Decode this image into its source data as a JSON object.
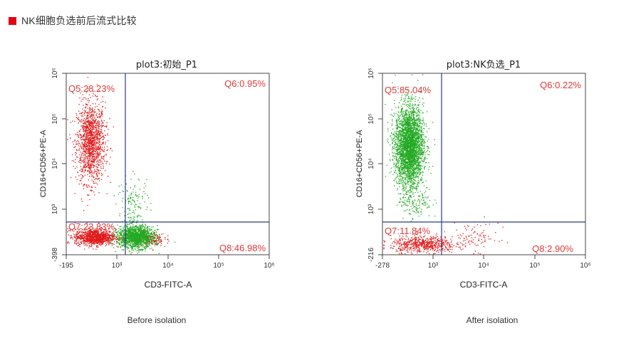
{
  "header": {
    "title": "NK细胞负选前后流式比较",
    "accent": "#e60012"
  },
  "captions": {
    "left": "Before isolation",
    "right": "After isolation"
  },
  "chart_data": [
    {
      "type": "scatter",
      "title": "plot3:初始_P1",
      "xlabel": "CD3-FITC-A",
      "ylabel": "CD16+CD56+PE-A",
      "x_ticks": [
        "-195",
        "10³",
        "10⁴",
        "10⁵",
        "10⁶"
      ],
      "y_ticks": [
        "-398",
        "10³",
        "10⁴",
        "10⁵",
        "10⁶"
      ],
      "quadrants": [
        {
          "label": "Q5:28.23%",
          "color": "#e03a3a"
        },
        {
          "label": "Q6:0.95%",
          "color": "#e03a3a"
        },
        {
          "label": "Q7:23.83%",
          "color": "#e03a3a"
        },
        {
          "label": "Q8:46.98%",
          "color": "#e03a3a"
        }
      ],
      "gate_color": "#2b3a8c",
      "populations": [
        {
          "color": "#e01919",
          "count": 1400,
          "cx": 0.12,
          "cy": 0.62,
          "sx": 0.035,
          "sy": 0.11
        },
        {
          "color": "#e01919",
          "count": 1100,
          "cx": 0.14,
          "cy": 0.1,
          "sx": 0.05,
          "sy": 0.022
        },
        {
          "color": "#e01919",
          "count": 200,
          "cx": 0.4,
          "cy": 0.09,
          "sx": 0.04,
          "sy": 0.02
        },
        {
          "color": "#22aa22",
          "count": 1500,
          "cx": 0.34,
          "cy": 0.1,
          "sx": 0.045,
          "sy": 0.03
        },
        {
          "color": "#22aa22",
          "count": 160,
          "cx": 0.33,
          "cy": 0.26,
          "sx": 0.04,
          "sy": 0.09
        }
      ]
    },
    {
      "type": "scatter",
      "title": "plot3:NK负选_P1",
      "xlabel": "CD3-FITC-A",
      "ylabel": "CD16+CD56+PE-A",
      "x_ticks": [
        "-278",
        "10³",
        "10⁴",
        "10⁵",
        "10⁶"
      ],
      "y_ticks": [
        "-216",
        "10³",
        "10⁴",
        "10⁵",
        "10⁶"
      ],
      "quadrants": [
        {
          "label": "Q5:85.04%",
          "color": "#e03a3a"
        },
        {
          "label": "Q6:0.22%",
          "color": "#e03a3a"
        },
        {
          "label": "Q7:11.84%",
          "color": "#e03a3a"
        },
        {
          "label": "Q8:2.90%",
          "color": "#e03a3a"
        }
      ],
      "gate_color": "#2b3a8c",
      "populations": [
        {
          "color": "#22aa22",
          "count": 3200,
          "cx": 0.13,
          "cy": 0.6,
          "sx": 0.035,
          "sy": 0.11
        },
        {
          "color": "#22aa22",
          "count": 150,
          "cx": 0.16,
          "cy": 0.3,
          "sx": 0.04,
          "sy": 0.05
        },
        {
          "color": "#e01919",
          "count": 600,
          "cx": 0.2,
          "cy": 0.06,
          "sx": 0.08,
          "sy": 0.022
        },
        {
          "color": "#e01919",
          "count": 90,
          "cx": 0.45,
          "cy": 0.1,
          "sx": 0.06,
          "sy": 0.04
        }
      ]
    }
  ]
}
